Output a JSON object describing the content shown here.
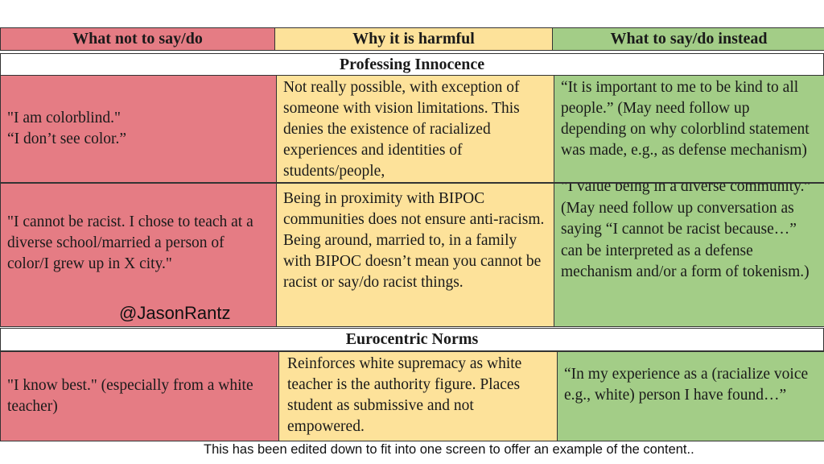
{
  "colors": {
    "not_say": "#e57c84",
    "why": "#fde29a",
    "instead": "#a3cd87"
  },
  "header": {
    "col1": "What not to say/do",
    "col2": "Why it is harmful",
    "col3": "What to say/do instead"
  },
  "sections": [
    {
      "title": "Professing Innocence",
      "rows": [
        {
          "not_say": [
            "\"I am colorblind.\"",
            "“I don’t see color.”"
          ],
          "why": "Not really possible, with exception of someone with vision limitations.  This denies the existence of racialized experiences and identities of students/people,",
          "instead": "“It is important to me to be kind to all people.”  (May need follow up depending on why colorblind statement was made, e.g., as defense mechanism)"
        },
        {
          "not_say": [
            "\"I cannot be racist. I chose to teach at a diverse school/married a person of color/I grew up in X city.\""
          ],
          "why": "Being in proximity with BIPOC communities does not ensure anti-racism.  Being around, married to, in a family with BIPOC doesn’t mean you cannot be racist or say/do racist things.",
          "instead": "“I value being in a diverse community.”  (May need follow up conversation as saying “I cannot be racist because…” can be interpreted as a defense mechanism and/or a form of tokenism.)"
        }
      ]
    },
    {
      "title": "Eurocentric Norms",
      "rows": [
        {
          "not_say": [
            "\"I know best.\" (especially from a white teacher)"
          ],
          "why": "Reinforces white supremacy as white teacher is the authority figure.  Places student as submissive and not empowered.",
          "instead": "“In my experience as a (racialize voice e.g., white) person I have found…”"
        }
      ]
    }
  ],
  "watermark": "@JasonRantz",
  "caption": "This has been edited down to fit into one screen to offer an example of the content.."
}
